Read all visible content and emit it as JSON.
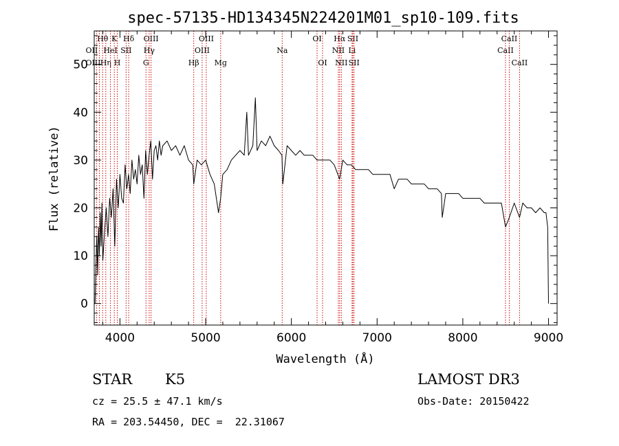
{
  "chart_data": {
    "type": "line",
    "title": "spec-57135-HD134345N224201M01_sp10-109.fits",
    "xlabel": "Wavelength (Å)",
    "ylabel": "Flux (relative)",
    "xlim": [
      3700,
      9100
    ],
    "ylim": [
      -4.5,
      57
    ],
    "xticks": [
      4000,
      5000,
      6000,
      7000,
      8000,
      9000
    ],
    "yticks": [
      0,
      10,
      20,
      30,
      40,
      50
    ],
    "series": [
      {
        "name": "flux",
        "x": [
          3710,
          3720,
          3730,
          3740,
          3750,
          3760,
          3770,
          3780,
          3790,
          3800,
          3820,
          3840,
          3860,
          3880,
          3900,
          3920,
          3940,
          3960,
          3980,
          4000,
          4020,
          4040,
          4060,
          4080,
          4100,
          4120,
          4140,
          4160,
          4180,
          4200,
          4220,
          4240,
          4260,
          4280,
          4300,
          4320,
          4340,
          4360,
          4380,
          4400,
          4420,
          4440,
          4460,
          4480,
          4500,
          4550,
          4600,
          4650,
          4700,
          4750,
          4800,
          4850,
          4861,
          4900,
          4950,
          5000,
          5050,
          5100,
          5150,
          5175,
          5200,
          5250,
          5300,
          5350,
          5400,
          5450,
          5480,
          5500,
          5550,
          5580,
          5600,
          5650,
          5700,
          5750,
          5800,
          5850,
          5890,
          5900,
          5950,
          6000,
          6050,
          6100,
          6150,
          6200,
          6250,
          6300,
          6350,
          6400,
          6450,
          6500,
          6563,
          6600,
          6650,
          6700,
          6750,
          6800,
          6850,
          6900,
          6950,
          7000,
          7050,
          7100,
          7150,
          7200,
          7250,
          7300,
          7350,
          7400,
          7450,
          7500,
          7550,
          7600,
          7650,
          7700,
          7750,
          7760,
          7800,
          7850,
          7900,
          7950,
          8000,
          8050,
          8100,
          8150,
          8200,
          8250,
          8300,
          8350,
          8400,
          8450,
          8498,
          8542,
          8600,
          8662,
          8700,
          8750,
          8800,
          8850,
          8900,
          8950,
          8970,
          8990,
          9000
        ],
        "values": [
          0,
          8,
          14,
          6,
          16,
          10,
          19,
          12,
          21,
          9,
          15,
          20,
          14,
          22,
          18,
          24,
          12,
          26,
          20,
          27,
          22,
          21,
          29,
          24,
          27,
          23,
          30,
          26,
          28,
          25,
          31,
          27,
          29,
          22,
          32,
          27,
          31,
          34,
          26,
          32,
          33,
          30,
          34,
          31,
          33,
          34,
          32,
          33,
          31,
          33,
          30,
          29,
          25,
          30,
          29,
          30,
          27,
          25,
          19,
          22,
          27,
          28,
          30,
          31,
          32,
          31,
          40,
          31,
          33,
          43,
          32,
          34,
          33,
          35,
          33,
          32,
          31,
          25,
          33,
          32,
          31,
          32,
          31,
          31,
          31,
          30,
          30,
          30,
          30,
          29,
          26,
          30,
          29,
          29,
          28,
          28,
          28,
          28,
          27,
          27,
          27,
          27,
          27,
          24,
          26,
          26,
          26,
          25,
          25,
          25,
          25,
          24,
          24,
          24,
          23,
          18,
          23,
          23,
          23,
          23,
          22,
          22,
          22,
          22,
          22,
          21,
          21,
          21,
          21,
          21,
          16,
          18,
          21,
          18,
          21,
          20,
          20,
          19,
          20,
          19,
          19,
          16,
          0
        ]
      }
    ],
    "lines": [
      {
        "name": "Hθ",
        "x": 3798,
        "row": 0,
        "dx": 0
      },
      {
        "name": "OII",
        "x": 3727,
        "row": 1,
        "dx": -7
      },
      {
        "name": "OIII",
        "x": 3760,
        "row": 2,
        "dx": -9
      },
      {
        "name": "Hη",
        "x": 3835,
        "row": 2,
        "dx": 0
      },
      {
        "name": "HeI",
        "x": 3889,
        "row": 1,
        "dx": 0
      },
      {
        "name": "K",
        "x": 3934,
        "row": 0,
        "dx": 0
      },
      {
        "name": "H",
        "x": 3969,
        "row": 2,
        "dx": 0
      },
      {
        "name": "SII",
        "x": 4072,
        "row": 1,
        "dx": 0
      },
      {
        "name": "Hδ",
        "x": 4102,
        "row": 0,
        "dx": 0
      },
      {
        "name": "G",
        "x": 4304,
        "row": 2,
        "dx": 0
      },
      {
        "name": "OIII",
        "x": 4363,
        "row": 0,
        "dx": 0
      },
      {
        "name": "Hγ",
        "x": 4341,
        "row": 1,
        "dx": 0
      },
      {
        "name": "Hβ",
        "x": 4861,
        "row": 2,
        "dx": 0
      },
      {
        "name": "OIII",
        "x": 4959,
        "row": 1,
        "dx": 0
      },
      {
        "name": "OIII",
        "x": 5007,
        "row": 0,
        "dx": 0
      },
      {
        "name": "Mg",
        "x": 5175,
        "row": 2,
        "dx": 0
      },
      {
        "name": "Na",
        "x": 5893,
        "row": 1,
        "dx": 0
      },
      {
        "name": "OI",
        "x": 6300,
        "row": 0,
        "dx": 0
      },
      {
        "name": "OI",
        "x": 6364,
        "row": 2,
        "dx": 0
      },
      {
        "name": "Hα",
        "x": 6563,
        "row": 0,
        "dx": 0
      },
      {
        "name": "NII",
        "x": 6548,
        "row": 1,
        "dx": 0
      },
      {
        "name": "NII",
        "x": 6583,
        "row": 2,
        "dx": 0
      },
      {
        "name": "SII",
        "x": 6717,
        "row": 0,
        "dx": 0
      },
      {
        "name": "Li",
        "x": 6708,
        "row": 1,
        "dx": 0
      },
      {
        "name": "SII",
        "x": 6731,
        "row": 2,
        "dx": 0
      },
      {
        "name": "CaII",
        "x": 8498,
        "row": 1,
        "dx": 0
      },
      {
        "name": "CaII",
        "x": 8542,
        "row": 0,
        "dx": 0
      },
      {
        "name": "CaII",
        "x": 8662,
        "row": 2,
        "dx": 0
      }
    ]
  },
  "info": {
    "class": "STAR",
    "subclass": "K5",
    "survey": "LAMOST DR3",
    "cz": "cz = 25.5 ± 47.1 km/s",
    "obs_date": "Obs-Date: 20150422",
    "coords": "RA = 203.54450, DEC =  22.31067"
  },
  "colors": {
    "line_marker": "#cc0000",
    "spectrum": "#000000"
  }
}
